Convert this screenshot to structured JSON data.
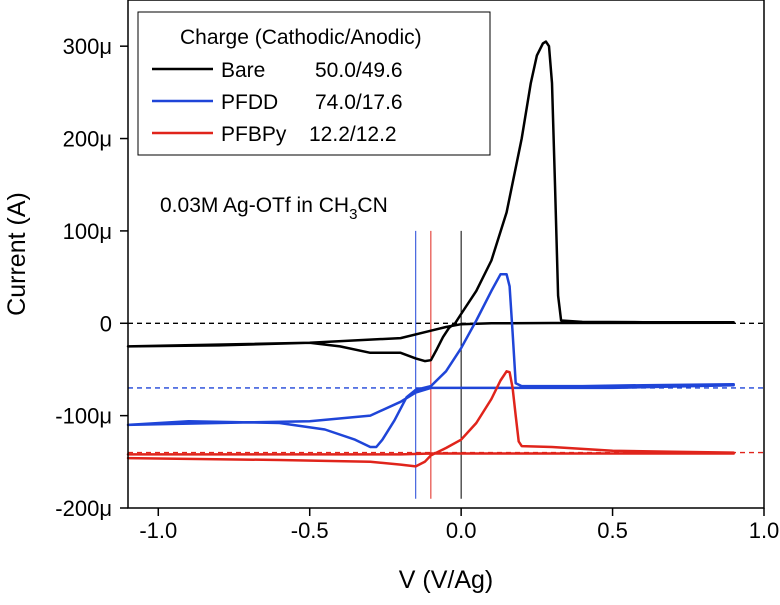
{
  "chart_data": {
    "type": "line",
    "xlabel": "V (V/Ag)",
    "ylabel": "Current (A)",
    "xlim": [
      -1.1,
      1.0
    ],
    "ylim": [
      -0.0002,
      0.00035
    ],
    "xticks": [
      {
        "value": -1.0,
        "label": "-1.0"
      },
      {
        "value": -0.5,
        "label": "-0.5"
      },
      {
        "value": 0.0,
        "label": "0.0"
      },
      {
        "value": 0.5,
        "label": "0.5"
      },
      {
        "value": 1.0,
        "label": "1.0"
      }
    ],
    "yticks": [
      {
        "value": -0.0002,
        "label": "-200μ"
      },
      {
        "value": -0.0001,
        "label": "-100μ"
      },
      {
        "value": 0.0,
        "label": "0"
      },
      {
        "value": 0.0001,
        "label": "100μ"
      },
      {
        "value": 0.0002,
        "label": "200μ"
      },
      {
        "value": 0.0003,
        "label": "300μ"
      }
    ],
    "legend": {
      "title": "Charge (Cathodic/Anodic)",
      "position": "top-left",
      "entries": [
        {
          "series": "Bare",
          "label": "Bare",
          "value": "50.0/49.6"
        },
        {
          "series": "PFDD",
          "label": "PFDD",
          "value": "74.0/17.6"
        },
        {
          "series": "PFBPy",
          "label": "PFBPy",
          "value": "12.2/12.2"
        }
      ]
    },
    "annotation": {
      "main": "0.03M Ag-OTf in CH",
      "sub": "3",
      "tail": "CN"
    },
    "baselines": [
      {
        "series": "Bare",
        "y": 0.0
      },
      {
        "series": "PFDD",
        "y": -7e-05
      },
      {
        "series": "PFBPy",
        "y": -0.00014
      }
    ],
    "vlines": [
      {
        "series": "PFDD",
        "x": -0.15
      },
      {
        "series": "PFBPy",
        "x": -0.1
      },
      {
        "series": "Bare",
        "x": 0.0
      }
    ],
    "series": [
      {
        "name": "Bare",
        "color": "#000000",
        "x": [
          -1.1,
          -0.8,
          -0.5,
          -0.4,
          -0.3,
          -0.2,
          -0.15,
          -0.12,
          -0.1,
          -0.08,
          -0.06,
          -0.04,
          -0.02,
          0.0,
          0.05,
          0.1,
          0.15,
          0.2,
          0.23,
          0.25,
          0.27,
          0.28,
          0.29,
          0.3,
          0.31,
          0.32,
          0.33,
          0.4,
          0.6,
          0.9,
          0.9,
          0.6,
          0.3,
          0.1,
          0.0,
          -0.05,
          -0.1,
          -0.2,
          -0.5,
          -1.1
        ],
        "y": [
          -2.5e-05,
          -2.4e-05,
          -2.1e-05,
          -2.5e-05,
          -3.2e-05,
          -3.2e-05,
          -3.8e-05,
          -4.1e-05,
          -4e-05,
          -2.8e-05,
          -1.5e-05,
          -5e-06,
          0.0,
          1e-05,
          3.5e-05,
          6.8e-05,
          0.00012,
          0.0002,
          0.00026,
          0.00029,
          0.000303,
          0.000305,
          0.0003,
          0.00026,
          0.00015,
          3e-05,
          3e-06,
          1.5e-06,
          1.2e-06,
          1e-06,
          5e-07,
          4e-07,
          3e-07,
          0.0,
          -1e-06,
          -4e-06,
          -8e-06,
          -1.6e-05,
          -2.1e-05,
          -2.5e-05
        ]
      },
      {
        "name": "PFDD",
        "color": "#1f45d8",
        "x": [
          -1.1,
          -0.9,
          -0.6,
          -0.45,
          -0.35,
          -0.3,
          -0.28,
          -0.26,
          -0.22,
          -0.18,
          -0.15,
          -0.1,
          -0.05,
          0.0,
          0.05,
          0.1,
          0.13,
          0.15,
          0.16,
          0.17,
          0.18,
          0.2,
          0.4,
          0.6,
          0.9,
          0.9,
          0.5,
          0.2,
          0.0,
          -0.1,
          -0.15,
          -0.2,
          -0.3,
          -0.5,
          -0.8,
          -1.1
        ],
        "y": [
          -0.00011,
          -0.000106,
          -0.000108,
          -0.000115,
          -0.000126,
          -0.000134,
          -0.000134,
          -0.000126,
          -0.000105,
          -8e-05,
          -7.2e-05,
          -6.8e-05,
          -5.2e-05,
          -2.7e-05,
          3e-06,
          3.5e-05,
          5.3e-05,
          5.3e-05,
          4e-05,
          -1e-05,
          -6.5e-05,
          -6.8e-05,
          -6.8e-05,
          -6.7e-05,
          -6.6e-05,
          -6.7e-05,
          -7e-05,
          -7e-05,
          -7e-05,
          -7e-05,
          -7.5e-05,
          -8.5e-05,
          -0.0001,
          -0.000106,
          -0.000108,
          -0.00011
        ]
      },
      {
        "name": "PFBPy",
        "color": "#e0241b",
        "x": [
          -1.1,
          -0.6,
          -0.3,
          -0.2,
          -0.15,
          -0.12,
          -0.1,
          -0.05,
          0.0,
          0.05,
          0.1,
          0.13,
          0.15,
          0.16,
          0.17,
          0.18,
          0.19,
          0.2,
          0.3,
          0.5,
          0.7,
          0.9,
          0.9,
          0.5,
          0.2,
          0.0,
          -0.1,
          -0.2,
          -0.5,
          -1.1
        ],
        "y": [
          -0.000146,
          -0.000148,
          -0.00015,
          -0.000153,
          -0.000155,
          -0.00015,
          -0.000143,
          -0.000135,
          -0.000126,
          -0.000108,
          -8.2e-05,
          -6.2e-05,
          -5.2e-05,
          -5.3e-05,
          -7e-05,
          -0.0001,
          -0.000128,
          -0.000133,
          -0.000134,
          -0.000138,
          -0.000139,
          -0.00014,
          -0.000141,
          -0.000141,
          -0.000141,
          -0.000141,
          -0.000141,
          -0.000142,
          -0.000142,
          -0.000142
        ]
      }
    ]
  }
}
